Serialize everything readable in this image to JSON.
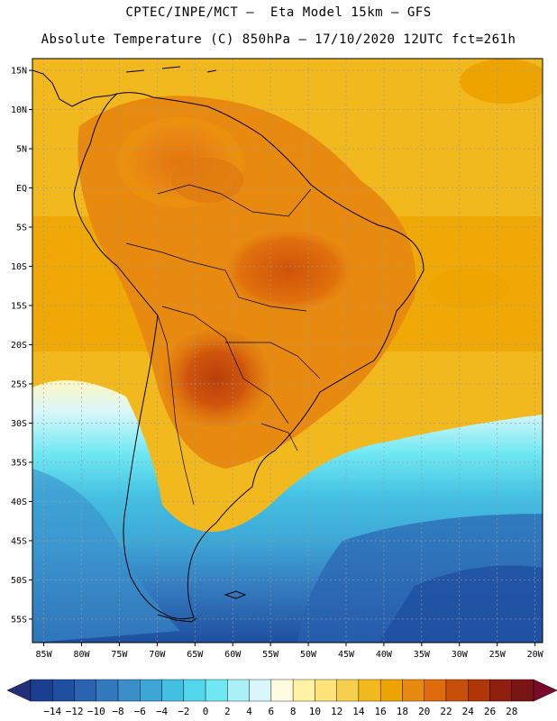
{
  "header": {
    "line1": "CPTEC/INPE/MCT –  Eta Model 15km – GFS",
    "line2": "Absolute Temperature (C) 850hPa – 17/10/2020 12UTC fct=261h"
  },
  "map": {
    "lat_labels": [
      "15N",
      "10N",
      "5N",
      "EQ",
      "5S",
      "10S",
      "15S",
      "20S",
      "25S",
      "30S",
      "35S",
      "40S",
      "45S",
      "50S",
      "55S"
    ],
    "lon_labels": [
      "85W",
      "80W",
      "75W",
      "70W",
      "65W",
      "60W",
      "55W",
      "50W",
      "45W",
      "40W",
      "35W",
      "30W",
      "25W",
      "20W"
    ],
    "lat_values": [
      15,
      10,
      5,
      0,
      -5,
      -10,
      -15,
      -20,
      -25,
      -30,
      -35,
      -40,
      -45,
      -50,
      -55
    ],
    "lon_values": [
      -85,
      -80,
      -75,
      -70,
      -65,
      -60,
      -55,
      -50,
      -45,
      -40,
      -35,
      -30,
      -25,
      -20
    ],
    "lat_range": [
      -58,
      16.5
    ],
    "lon_range": [
      -86.5,
      -19
    ],
    "gridlines": true
  },
  "colorbar": {
    "labels": [
      "-14",
      "-12",
      "-10",
      "-8",
      "-6",
      "-4",
      "-2",
      "0",
      "2",
      "4",
      "6",
      "8",
      "10",
      "12",
      "14",
      "16",
      "18",
      "20",
      "22",
      "24",
      "26",
      "28"
    ],
    "colors": [
      "#1a3f8f",
      "#1f4fa0",
      "#2a63b0",
      "#3379bd",
      "#3a8fcb",
      "#3ea6d6",
      "#43bfe2",
      "#52d6ec",
      "#6fe8f2",
      "#a9f0f7",
      "#d9f7fb",
      "#fffbe0",
      "#fff3a3",
      "#fde37a",
      "#f7cf4e",
      "#f2b91e",
      "#eea400",
      "#e88a10",
      "#de6b0c",
      "#c84f0a",
      "#b03708",
      "#8f2010",
      "#7a1515"
    ],
    "under_color": "#22307a",
    "over_color": "#7a0a2a"
  }
}
